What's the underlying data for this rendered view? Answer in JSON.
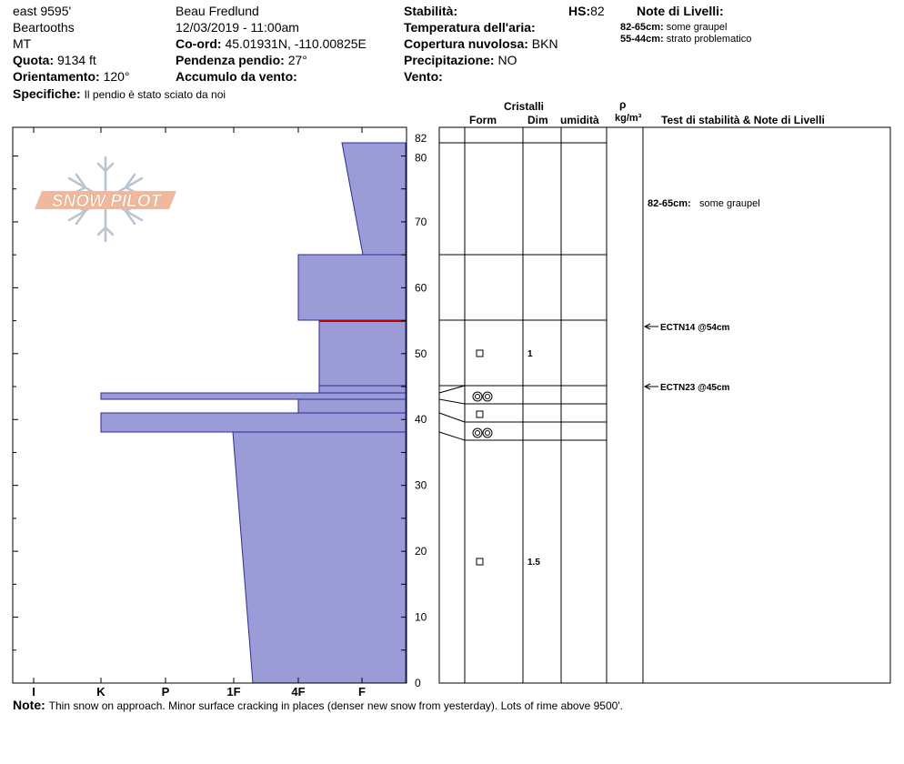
{
  "header": {
    "col1": [
      "east 9595'",
      "Beartooths",
      "MT"
    ],
    "elevation_label": "Quota:",
    "elevation_value": "9134 ft",
    "aspect_label": "Orientamento:",
    "aspect_value": "120°",
    "specifics_label": "Specifiche:",
    "specifics_value": "Il pendio è stato sciato da noi",
    "observer": "Beau  Fredlund",
    "datetime": "12/03/2019 - 11:00am",
    "coord_label": "Co-ord:",
    "coord_value": "45.01931N, -110.00825E",
    "slope_label": "Pendenza pendio:",
    "slope_value": "27°",
    "wind_loading_label": "Accumulo da vento:",
    "stability_label": "Stabilità:",
    "hs_label": "HS:",
    "hs_value": "82",
    "air_temp_label": "Temperatura dell'aria:",
    "sky_label": "Copertura nuvolosa:",
    "sky_value": "BKN",
    "precip_label": "Precipitazione:",
    "precip_value": "NO",
    "wind_label": "Vento:",
    "layer_notes_title": "Note di Livelli:",
    "layer_notes": [
      {
        "range": "82-65cm:",
        "text": "some graupel"
      },
      {
        "range": "55-44cm:",
        "text": "strato problematico"
      }
    ]
  },
  "logo": {
    "text": "SNOW PILOT"
  },
  "columns": {
    "crystals": "Cristalli",
    "form": "Form",
    "dim": "Dim",
    "moisture": "umidità",
    "rho": "ρ",
    "density_unit": "kg/m³",
    "tests_notes": "Test di stabilità & Note di Livelli"
  },
  "chart_data": {
    "type": "snow_profile",
    "y_unit": "cm",
    "ylim": [
      0,
      82
    ],
    "y_ticks": [
      0,
      10,
      20,
      30,
      40,
      50,
      60,
      70,
      80,
      82
    ],
    "hardness_scale": [
      "I",
      "K",
      "P",
      "1F",
      "4F",
      "F"
    ],
    "hardness_profile_color": "#9b9bd8",
    "weak_layer_color": "#c00000",
    "layer_boundaries_cm": [
      82,
      65,
      55,
      45,
      44,
      43,
      41,
      40,
      38,
      37,
      0
    ],
    "weak_layer_cm": 55,
    "crystals": [
      {
        "depth_cm": 50,
        "form": "square",
        "size": "1"
      },
      {
        "depth_cm": 43.5,
        "form": "ring"
      },
      {
        "depth_cm": 41,
        "form": "square"
      },
      {
        "depth_cm": 38.5,
        "form": "ring"
      },
      {
        "depth_cm": 18.5,
        "form": "square",
        "size": "1.5"
      }
    ],
    "tests": [
      {
        "depth_cm": 54,
        "label": "ECTN14 @54cm"
      },
      {
        "depth_cm": 45,
        "label": "ECTN23 @45cm"
      }
    ],
    "layer_note_in_chart": {
      "depth_cm": 73,
      "range": "82-65cm:",
      "text": "some graupel"
    }
  },
  "footer": {
    "note_label": "Note:",
    "note_text": "Thin snow on approach.  Minor surface cracking in places (denser new snow from yesterday).  Lots of rime above 9500'."
  }
}
